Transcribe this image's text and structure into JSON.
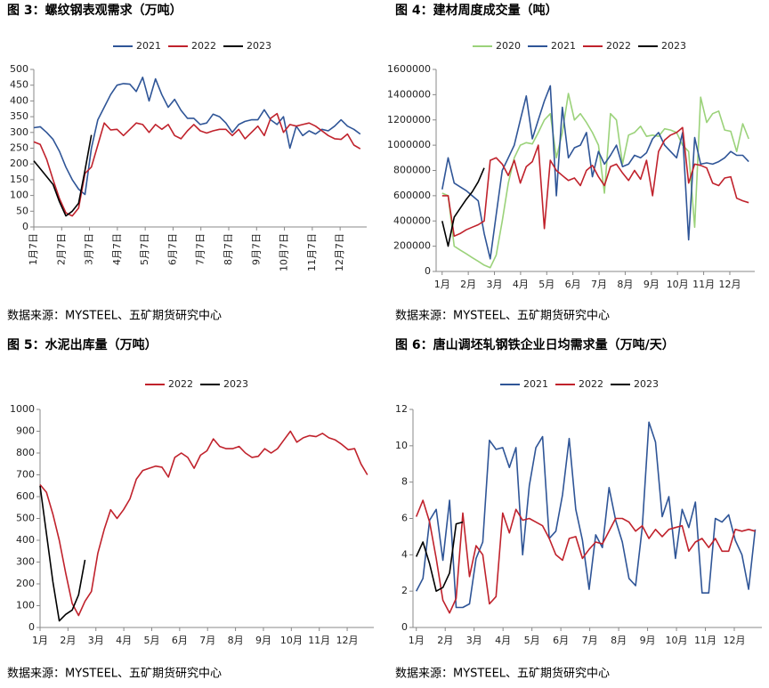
{
  "chart_data": [
    {
      "type": "line",
      "title": "图 3：螺纹钢表观需求（万吨）",
      "source": "数据来源：MYSTEEL、五矿期货研究中心",
      "x": [
        1,
        2,
        3,
        4,
        5,
        6,
        7,
        8,
        9,
        10,
        11,
        12,
        13,
        14,
        15,
        16,
        17,
        18,
        19,
        20,
        21,
        22,
        23,
        24,
        25,
        26,
        27,
        28,
        29,
        30,
        31,
        32,
        33,
        34,
        35,
        36,
        37,
        38,
        39,
        40,
        41,
        42,
        43,
        44,
        45,
        46,
        47,
        48,
        49,
        50,
        51,
        52
      ],
      "xlim": [
        1,
        53
      ],
      "xticks": [
        {
          "value": 1,
          "label": "1月7日"
        },
        {
          "value": 5.35,
          "label": "2月7日"
        },
        {
          "value": 9.7,
          "label": "3月7日"
        },
        {
          "value": 14.05,
          "label": "4月7日"
        },
        {
          "value": 18.4,
          "label": "5月7日"
        },
        {
          "value": 22.75,
          "label": "6月7日"
        },
        {
          "value": 27.1,
          "label": "7月7日"
        },
        {
          "value": 31.45,
          "label": "8月7日"
        },
        {
          "value": 35.8,
          "label": "9月7日"
        },
        {
          "value": 40.15,
          "label": "10月7日"
        },
        {
          "value": 44.5,
          "label": "11月7日"
        },
        {
          "value": 48.85,
          "label": "12月7日"
        }
      ],
      "ylim": [
        0,
        500
      ],
      "yticks": [
        0,
        50,
        100,
        150,
        200,
        250,
        300,
        350,
        400,
        450,
        500
      ],
      "series": [
        {
          "name": "2021",
          "color": "#2f5597",
          "values": [
            315,
            318,
            300,
            278,
            240,
            190,
            150,
            120,
            103,
            250,
            340,
            380,
            420,
            450,
            455,
            453,
            430,
            475,
            400,
            470,
            420,
            380,
            405,
            370,
            345,
            345,
            325,
            330,
            358,
            350,
            330,
            300,
            325,
            335,
            340,
            340,
            372,
            340,
            325,
            350,
            250,
            320,
            290,
            305,
            295,
            310,
            305,
            320,
            340,
            320,
            310,
            295
          ]
        },
        {
          "name": "2022",
          "color": "#c0222c",
          "values": [
            270,
            262,
            215,
            150,
            90,
            45,
            35,
            60,
            170,
            190,
            260,
            330,
            308,
            310,
            290,
            310,
            330,
            325,
            300,
            325,
            310,
            325,
            290,
            280,
            305,
            325,
            305,
            298,
            305,
            310,
            310,
            290,
            310,
            280,
            300,
            320,
            290,
            345,
            360,
            300,
            325,
            320,
            325,
            330,
            320,
            305,
            290,
            280,
            278,
            295,
            260,
            248
          ]
        },
        {
          "name": "2023",
          "color": "#000000",
          "x": [
            1,
            2,
            3,
            4,
            5,
            6,
            7,
            8,
            9,
            10
          ],
          "values": [
            210,
            185,
            160,
            135,
            80,
            35,
            50,
            75,
            180,
            292
          ]
        }
      ]
    },
    {
      "type": "line",
      "title": "图 4：建材周度成交量（吨）",
      "source": "数据来源：MYSTEEL、五矿期货研究中心",
      "x": [
        1,
        2,
        3,
        4,
        5,
        6,
        7,
        8,
        9,
        10,
        11,
        12,
        13,
        14,
        15,
        16,
        17,
        18,
        19,
        20,
        21,
        22,
        23,
        24,
        25,
        26,
        27,
        28,
        29,
        30,
        31,
        32,
        33,
        34,
        35,
        36,
        37,
        38,
        39,
        40,
        41,
        42,
        43,
        44,
        45,
        46,
        47,
        48,
        49,
        50,
        51,
        52
      ],
      "xlim": [
        0,
        53
      ],
      "xticks": [
        {
          "value": 1,
          "label": "1月"
        },
        {
          "value": 5.35,
          "label": "2月"
        },
        {
          "value": 9.7,
          "label": "3月"
        },
        {
          "value": 14.05,
          "label": "4月"
        },
        {
          "value": 18.4,
          "label": "5月"
        },
        {
          "value": 22.75,
          "label": "6月"
        },
        {
          "value": 27.1,
          "label": "7月"
        },
        {
          "value": 31.45,
          "label": "8月"
        },
        {
          "value": 35.8,
          "label": "9月"
        },
        {
          "value": 40.15,
          "label": "10月"
        },
        {
          "value": 44.5,
          "label": "11月"
        },
        {
          "value": 48.85,
          "label": "12月"
        }
      ],
      "ylim": [
        0,
        1600000
      ],
      "yticks": [
        0,
        200000,
        400000,
        600000,
        800000,
        1000000,
        1200000,
        1400000,
        1600000
      ],
      "series": [
        {
          "name": "2020",
          "color": "#9bd27a",
          "values": [
            620000,
            600000,
            200000,
            170000,
            140000,
            110000,
            80000,
            50000,
            30000,
            130000,
            400000,
            700000,
            900000,
            1000000,
            1020000,
            1010000,
            1100000,
            1200000,
            1250000,
            900000,
            1100000,
            1410000,
            1200000,
            1250000,
            1180000,
            1100000,
            1000000,
            620000,
            1250000,
            1200000,
            850000,
            1080000,
            1100000,
            1150000,
            1070000,
            1080000,
            1070000,
            1130000,
            1120000,
            1100000,
            1000000,
            950000,
            350000,
            1380000,
            1180000,
            1250000,
            1270000,
            1120000,
            1110000,
            950000,
            1170000,
            1050000
          ]
        },
        {
          "name": "2021",
          "color": "#2f5597",
          "values": [
            650000,
            900000,
            700000,
            670000,
            640000,
            600000,
            560000,
            300000,
            100000,
            450000,
            800000,
            900000,
            1000000,
            1200000,
            1390000,
            1050000,
            1200000,
            1350000,
            1470000,
            600000,
            1300000,
            900000,
            980000,
            1000000,
            1100000,
            750000,
            950000,
            850000,
            920000,
            1000000,
            830000,
            850000,
            920000,
            900000,
            940000,
            1050000,
            1100000,
            1000000,
            950000,
            900000,
            1100000,
            250000,
            1060000,
            850000,
            860000,
            850000,
            870000,
            900000,
            950000,
            920000,
            920000,
            870000
          ]
        },
        {
          "name": "2022",
          "color": "#c0222c",
          "values": [
            600000,
            600000,
            280000,
            300000,
            330000,
            350000,
            370000,
            400000,
            880000,
            900000,
            850000,
            760000,
            880000,
            700000,
            830000,
            870000,
            1000000,
            340000,
            880000,
            800000,
            760000,
            720000,
            740000,
            680000,
            800000,
            840000,
            750000,
            680000,
            830000,
            850000,
            780000,
            720000,
            800000,
            730000,
            880000,
            600000,
            950000,
            1040000,
            1080000,
            1100000,
            1140000,
            700000,
            850000,
            840000,
            820000,
            700000,
            680000,
            740000,
            750000,
            580000,
            560000,
            545000
          ]
        },
        {
          "name": "2023",
          "color": "#000000",
          "x": [
            1,
            2,
            3,
            4,
            5,
            6,
            7,
            8
          ],
          "values": [
            400000,
            200000,
            430000,
            500000,
            570000,
            630000,
            710000,
            820000
          ]
        }
      ]
    },
    {
      "type": "line",
      "title": "图 5：水泥出库量（万吨）",
      "source": "数据来源：MYSTEEL、五矿期货研究中心",
      "x": [
        1,
        2,
        3,
        4,
        5,
        6,
        7,
        8,
        9,
        10,
        11,
        12,
        13,
        14,
        15,
        16,
        17,
        18,
        19,
        20,
        21,
        22,
        23,
        24,
        25,
        26,
        27,
        28,
        29,
        30,
        31,
        32,
        33,
        34,
        35,
        36,
        37,
        38,
        39,
        40,
        41,
        42,
        43,
        44,
        45,
        46,
        47,
        48,
        49,
        50,
        51,
        52
      ],
      "xlim": [
        1,
        53
      ],
      "xticks": [
        {
          "value": 1,
          "label": "1月"
        },
        {
          "value": 5.35,
          "label": "2月"
        },
        {
          "value": 9.7,
          "label": "3月"
        },
        {
          "value": 14.05,
          "label": "4月"
        },
        {
          "value": 18.4,
          "label": "5月"
        },
        {
          "value": 22.75,
          "label": "6月"
        },
        {
          "value": 27.1,
          "label": "7月"
        },
        {
          "value": 31.45,
          "label": "8月"
        },
        {
          "value": 35.8,
          "label": "9月"
        },
        {
          "value": 40.15,
          "label": "10月"
        },
        {
          "value": 44.5,
          "label": "11月"
        },
        {
          "value": 48.85,
          "label": "12月"
        }
      ],
      "ylim": [
        0,
        1000
      ],
      "yticks": [
        0,
        100,
        200,
        300,
        400,
        500,
        600,
        700,
        800,
        900,
        1000
      ],
      "series": [
        {
          "name": "2022",
          "color": "#c0222c",
          "values": [
            655,
            620,
            520,
            400,
            250,
            110,
            55,
            120,
            165,
            340,
            450,
            540,
            500,
            540,
            590,
            680,
            720,
            730,
            740,
            735,
            690,
            780,
            800,
            780,
            730,
            790,
            810,
            865,
            830,
            820,
            820,
            830,
            800,
            780,
            785,
            820,
            800,
            820,
            860,
            900,
            850,
            870,
            880,
            875,
            890,
            870,
            860,
            840,
            815,
            820,
            750,
            700
          ]
        },
        {
          "name": "2023",
          "color": "#000000",
          "x": [
            1,
            2,
            3,
            4,
            5,
            6,
            7,
            8
          ],
          "values": [
            650,
            430,
            210,
            30,
            60,
            80,
            150,
            310
          ]
        }
      ]
    },
    {
      "type": "line",
      "title": "图 6：唐山调坯轧钢铁企业日均需求量（万吨/天）",
      "source": "数据来源：MYSTEEL、五矿期货研究中心",
      "x": [
        1,
        2,
        3,
        4,
        5,
        6,
        7,
        8,
        9,
        10,
        11,
        12,
        13,
        14,
        15,
        16,
        17,
        18,
        19,
        20,
        21,
        22,
        23,
        24,
        25,
        26,
        27,
        28,
        29,
        30,
        31,
        32,
        33,
        34,
        35,
        36,
        37,
        38,
        39,
        40,
        41,
        42,
        43,
        44,
        45,
        46,
        47,
        48,
        49,
        50,
        51,
        52
      ],
      "xlim": [
        0.5,
        53
      ],
      "xticks": [
        {
          "value": 1,
          "label": "1月"
        },
        {
          "value": 5.35,
          "label": "2月"
        },
        {
          "value": 9.7,
          "label": "3月"
        },
        {
          "value": 14.05,
          "label": "4月"
        },
        {
          "value": 18.4,
          "label": "5月"
        },
        {
          "value": 22.75,
          "label": "6月"
        },
        {
          "value": 27.1,
          "label": "7月"
        },
        {
          "value": 31.45,
          "label": "8月"
        },
        {
          "value": 35.8,
          "label": "9月"
        },
        {
          "value": 40.15,
          "label": "10月"
        },
        {
          "value": 44.5,
          "label": "11月"
        },
        {
          "value": 48.85,
          "label": "12月"
        }
      ],
      "ylim": [
        0,
        12
      ],
      "yticks": [
        0,
        2,
        4,
        6,
        8,
        10,
        12
      ],
      "series": [
        {
          "name": "2021",
          "color": "#2f5597",
          "values": [
            2,
            2.7,
            5.9,
            6.5,
            3.7,
            7,
            1.1,
            1.1,
            1.3,
            3.8,
            4.7,
            10.3,
            9.8,
            9.9,
            8.8,
            9.9,
            4,
            7.8,
            9.9,
            10.5,
            4.9,
            5.3,
            7.3,
            10.4,
            6.5,
            4.8,
            2.1,
            5.1,
            4.4,
            7.7,
            5.9,
            4.7,
            2.7,
            2.3,
            5.5,
            11.3,
            10.2,
            6.1,
            7.2,
            3.8,
            6.5,
            5.5,
            6.9,
            1.9,
            1.9,
            6,
            5.8,
            6.2,
            4.8,
            4,
            2.1,
            5.4
          ]
        },
        {
          "name": "2022",
          "color": "#c0222c",
          "values": [
            6.1,
            7,
            5.8,
            3.8,
            1.5,
            0.8,
            1.6,
            6.3,
            2.8,
            4.5,
            4,
            1.3,
            1.7,
            6.3,
            5.2,
            6.5,
            5.9,
            6,
            5.8,
            5.6,
            4.9,
            4,
            3.7,
            4.9,
            5,
            3.8,
            4.3,
            4.7,
            4.6,
            5.3,
            6,
            6,
            5.8,
            5.3,
            5.6,
            4.9,
            5.4,
            5,
            5.4,
            5.5,
            5.6,
            4.2,
            4.7,
            4.9,
            4.4,
            4.9,
            4.2,
            4.2,
            5.4,
            5.3,
            5.4,
            5.3
          ]
        },
        {
          "name": "2023",
          "color": "#000000",
          "x": [
            1,
            2,
            3,
            4,
            5,
            6,
            7,
            8
          ],
          "values": [
            3.9,
            4.7,
            3.5,
            2,
            2.2,
            3,
            5.7,
            5.8
          ]
        }
      ]
    }
  ]
}
